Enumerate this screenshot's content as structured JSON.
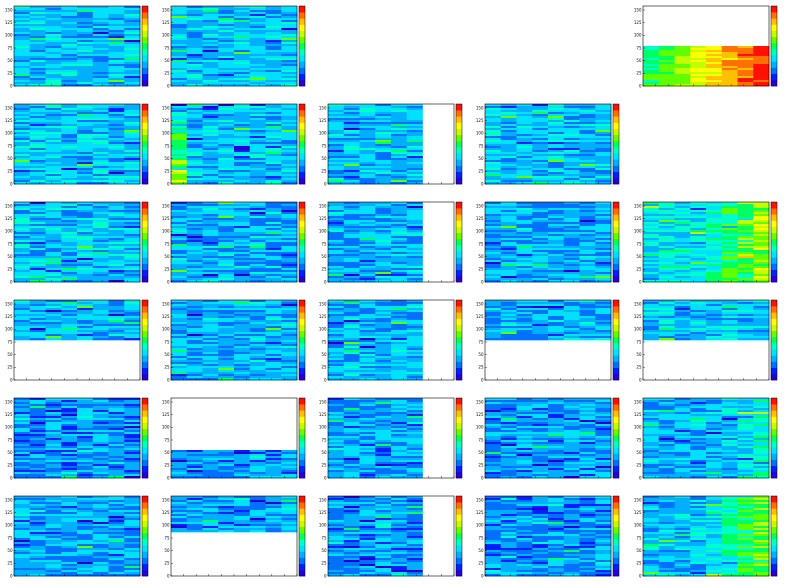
{
  "chart_data": {
    "type": "heatmap",
    "layout": {
      "rows": 6,
      "cols": 5
    },
    "colormap": [
      "#2a00d2",
      "#0020ff",
      "#0070ff",
      "#00b0ff",
      "#00e0ff",
      "#00ffc8",
      "#00ff60",
      "#60ff00",
      "#c0ff00",
      "#ffff00",
      "#ffc000",
      "#ff7000",
      "#ff1000"
    ],
    "y_ticks": [
      "0",
      "25",
      "50",
      "75",
      "100",
      "125",
      "150"
    ],
    "panels": [
      {
        "row": 0,
        "col": 0,
        "present": true,
        "fill_y": [
          0,
          1
        ],
        "fill_x": [
          0,
          1
        ],
        "base": 0.3,
        "gradient": "none",
        "seed": 11
      },
      {
        "row": 0,
        "col": 1,
        "present": true,
        "fill_y": [
          0,
          1
        ],
        "fill_x": [
          0,
          1
        ],
        "base": 0.3,
        "gradient": "none",
        "seed": 12
      },
      {
        "row": 0,
        "col": 2,
        "present": false
      },
      {
        "row": 0,
        "col": 3,
        "present": false
      },
      {
        "row": 0,
        "col": 4,
        "present": true,
        "fill_y": [
          0,
          0.5
        ],
        "fill_x": [
          0,
          1
        ],
        "base": 0.62,
        "gradient": "right-hot",
        "seed": 15
      },
      {
        "row": 1,
        "col": 0,
        "present": true,
        "fill_y": [
          0,
          1
        ],
        "fill_x": [
          0,
          1
        ],
        "base": 0.3,
        "gradient": "none",
        "seed": 21
      },
      {
        "row": 1,
        "col": 1,
        "present": true,
        "fill_y": [
          0,
          1
        ],
        "fill_x": [
          0,
          1
        ],
        "base": 0.3,
        "gradient": "left-warm",
        "seed": 22
      },
      {
        "row": 1,
        "col": 2,
        "present": true,
        "fill_y": [
          0,
          1
        ],
        "fill_x": [
          0,
          0.72
        ],
        "base": 0.3,
        "gradient": "none",
        "seed": 23
      },
      {
        "row": 1,
        "col": 3,
        "present": true,
        "fill_y": [
          0,
          1
        ],
        "fill_x": [
          0,
          1
        ],
        "base": 0.3,
        "gradient": "none",
        "seed": 24
      },
      {
        "row": 1,
        "col": 4,
        "present": false
      },
      {
        "row": 2,
        "col": 0,
        "present": true,
        "fill_y": [
          0,
          1
        ],
        "fill_x": [
          0,
          1
        ],
        "base": 0.3,
        "gradient": "none",
        "seed": 31
      },
      {
        "row": 2,
        "col": 1,
        "present": true,
        "fill_y": [
          0,
          1
        ],
        "fill_x": [
          0,
          1
        ],
        "base": 0.28,
        "gradient": "none",
        "seed": 32
      },
      {
        "row": 2,
        "col": 2,
        "present": true,
        "fill_y": [
          0,
          1
        ],
        "fill_x": [
          0,
          0.72
        ],
        "base": 0.28,
        "gradient": "none",
        "seed": 33
      },
      {
        "row": 2,
        "col": 3,
        "present": true,
        "fill_y": [
          0,
          1
        ],
        "fill_x": [
          0,
          1
        ],
        "base": 0.27,
        "gradient": "none",
        "seed": 34
      },
      {
        "row": 2,
        "col": 4,
        "present": true,
        "fill_y": [
          0,
          1
        ],
        "fill_x": [
          0,
          1
        ],
        "base": 0.36,
        "gradient": "right-green",
        "seed": 35
      },
      {
        "row": 3,
        "col": 0,
        "present": true,
        "fill_y": [
          0.5,
          1
        ],
        "fill_x": [
          0,
          1
        ],
        "base": 0.28,
        "gradient": "none",
        "seed": 41
      },
      {
        "row": 3,
        "col": 1,
        "present": true,
        "fill_y": [
          0,
          1
        ],
        "fill_x": [
          0,
          1
        ],
        "base": 0.28,
        "gradient": "none",
        "seed": 42
      },
      {
        "row": 3,
        "col": 2,
        "present": true,
        "fill_y": [
          0,
          1
        ],
        "fill_x": [
          0,
          0.72
        ],
        "base": 0.28,
        "gradient": "none",
        "seed": 43
      },
      {
        "row": 3,
        "col": 3,
        "present": true,
        "fill_y": [
          0.5,
          1
        ],
        "fill_x": [
          0,
          1
        ],
        "base": 0.28,
        "gradient": "none",
        "seed": 44
      },
      {
        "row": 3,
        "col": 4,
        "present": true,
        "fill_y": [
          0.5,
          1
        ],
        "fill_x": [
          0,
          1
        ],
        "base": 0.3,
        "gradient": "none",
        "seed": 45
      },
      {
        "row": 4,
        "col": 0,
        "present": true,
        "fill_y": [
          0,
          1
        ],
        "fill_x": [
          0,
          1
        ],
        "base": 0.24,
        "gradient": "none",
        "seed": 51
      },
      {
        "row": 4,
        "col": 1,
        "present": true,
        "fill_y": [
          0,
          0.35
        ],
        "fill_x": [
          0,
          1
        ],
        "base": 0.24,
        "gradient": "none",
        "seed": 52
      },
      {
        "row": 4,
        "col": 2,
        "present": true,
        "fill_y": [
          0,
          1
        ],
        "fill_x": [
          0,
          0.72
        ],
        "base": 0.26,
        "gradient": "none",
        "seed": 53
      },
      {
        "row": 4,
        "col": 3,
        "present": true,
        "fill_y": [
          0,
          1
        ],
        "fill_x": [
          0,
          1
        ],
        "base": 0.24,
        "gradient": "none",
        "seed": 54
      },
      {
        "row": 4,
        "col": 4,
        "present": true,
        "fill_y": [
          0,
          1
        ],
        "fill_x": [
          0,
          1
        ],
        "base": 0.28,
        "gradient": "right-green-soft",
        "seed": 55
      },
      {
        "row": 5,
        "col": 0,
        "present": true,
        "fill_y": [
          0,
          1
        ],
        "fill_x": [
          0,
          1
        ],
        "base": 0.26,
        "gradient": "none",
        "seed": 61
      },
      {
        "row": 5,
        "col": 1,
        "present": true,
        "fill_y": [
          0.55,
          1
        ],
        "fill_x": [
          0,
          1
        ],
        "base": 0.26,
        "gradient": "none",
        "seed": 62
      },
      {
        "row": 5,
        "col": 2,
        "present": true,
        "fill_y": [
          0,
          1
        ],
        "fill_x": [
          0,
          0.72
        ],
        "base": 0.24,
        "gradient": "none",
        "seed": 63
      },
      {
        "row": 5,
        "col": 3,
        "present": true,
        "fill_y": [
          0,
          1
        ],
        "fill_x": [
          0,
          1
        ],
        "base": 0.24,
        "gradient": "none",
        "seed": 64
      },
      {
        "row": 5,
        "col": 4,
        "present": true,
        "fill_y": [
          0,
          1
        ],
        "fill_x": [
          0,
          1
        ],
        "base": 0.3,
        "gradient": "right-green",
        "seed": 65
      }
    ]
  }
}
